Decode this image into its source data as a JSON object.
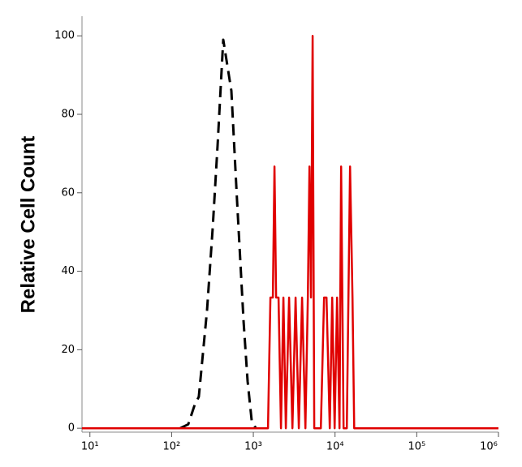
{
  "chart_data": {
    "type": "line",
    "y_label": "Relative Cell Count",
    "xscale": "log",
    "xlim": [
      8,
      1000000
    ],
    "ylim": [
      -1,
      105
    ],
    "xticks": [
      {
        "value": 10,
        "label": "10¹"
      },
      {
        "value": 100,
        "label": "10²"
      },
      {
        "value": 1000,
        "label": "10³"
      },
      {
        "value": 10000,
        "label": "10⁴"
      },
      {
        "value": 100000,
        "label": "10⁵"
      },
      {
        "value": 1000000,
        "label": "10⁶"
      }
    ],
    "yticks": [
      0,
      20,
      40,
      60,
      80,
      100
    ],
    "series": [
      {
        "color": "#000000",
        "dashed": true,
        "x": [
          127,
          160,
          192,
          215,
          271,
          318,
          365,
          428,
          538,
          632,
          760,
          851,
          955,
          1072
        ],
        "values": [
          0,
          1,
          6,
          8,
          30,
          51,
          72,
          99,
          86,
          58,
          27,
          12,
          2,
          0
        ]
      },
      {
        "color": "#e00000",
        "dashed": false,
        "x": [
          8,
          1510,
          1618,
          1734,
          1815,
          1901,
          2033,
          2178,
          2333,
          2500,
          2741,
          3006,
          3289,
          3606,
          3954,
          4335,
          4645,
          4864,
          5084,
          5323,
          5572,
          5970,
          6699,
          7345,
          7870,
          8610,
          9226,
          9886,
          10590,
          11350,
          11880,
          12710,
          13930,
          14590,
          15280,
          16370,
          17140,
          1000000
        ],
        "values": [
          0,
          0,
          33.3,
          33.3,
          66.7,
          33.3,
          33.3,
          0,
          33.3,
          0,
          33.3,
          0,
          33.3,
          0,
          33.3,
          0,
          33.3,
          66.7,
          33.3,
          100,
          0,
          0,
          0,
          33.3,
          33.3,
          0,
          33.3,
          0,
          33.3,
          0,
          66.7,
          0,
          0,
          33.3,
          66.7,
          33.3,
          0,
          0
        ]
      }
    ]
  }
}
